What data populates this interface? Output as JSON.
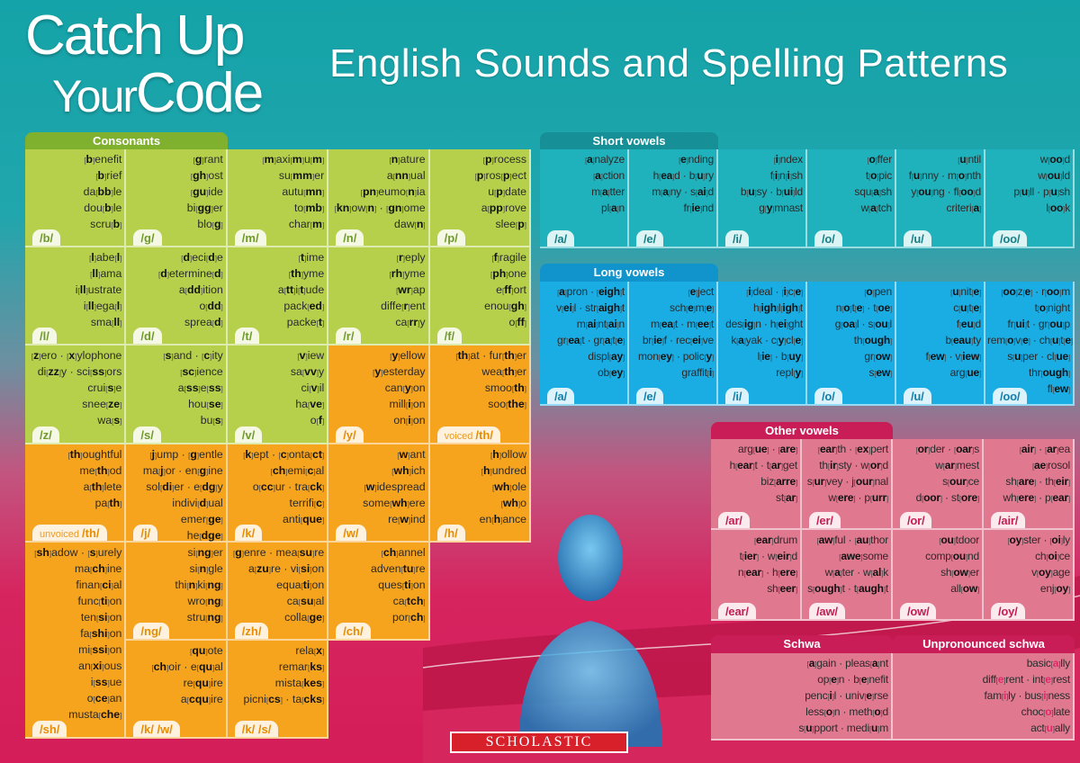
{
  "title": {
    "line1": "Catch Up",
    "line2a": "Your",
    "line2b": "Code",
    "subtitle": "English Sounds and Spelling Patterns"
  },
  "colors": {
    "consonant_green": "#b6d04c",
    "consonant_orange": "#f6a31d",
    "short_vowels": "#20b2bc",
    "long_vowels": "#1aade4",
    "other_vowels": "#e07890",
    "header_pink": "#d41d59"
  },
  "consonants": {
    "title": "Consonants",
    "cells": [
      {
        "label": "/b/",
        "words": [
          "[b]enefit",
          "[b]rief",
          "da[bb]le",
          "dou[b]le",
          "scru[b]"
        ]
      },
      {
        "label": "/g/",
        "words": [
          "[g]rant",
          "[gh]ost",
          "[gu]ide",
          "bi[gg]er",
          "blo[g]"
        ]
      },
      {
        "label": "/m/",
        "words": [
          "[m]axi[m]u[m]",
          "su[mm]er",
          "autu[mn]",
          "to[mb]",
          "char[m]"
        ]
      },
      {
        "label": "/n/",
        "words": [
          "[n]ature",
          "a[nn]ual",
          "[pn]eumo[n]ia",
          "[kn]ow[n] · [gn]ome",
          "daw[n]"
        ]
      },
      {
        "label": "/p/",
        "words": [
          "[p]rocess",
          "[p]ros[p]ect",
          "u[p]date",
          "a[pp]rove",
          "slee[p]"
        ]
      },
      {
        "label": "/l/",
        "words": [
          "[l]abe[l]",
          "[ll]ama",
          "i[ll]ustrate",
          "i[ll]ega[l]",
          "sma[ll]"
        ]
      },
      {
        "label": "/d/",
        "words": [
          "[d]eci[d]e",
          "[d]etermine[d]",
          "a[dd]ition",
          "o[dd]",
          "sprea[d]"
        ]
      },
      {
        "label": "/t/",
        "words": [
          "[t]ime",
          "[th]yme",
          "a[tt]i[t]ude",
          "pack[ed]",
          "packe[t]"
        ]
      },
      {
        "label": "/r/",
        "words": [
          "[r]eply",
          "[rh]yme",
          "[wr]ap",
          "diffe[r]ent",
          "ca[rr]y"
        ]
      },
      {
        "label": "/f/",
        "words": [
          "[f]ragile",
          "[ph]one",
          "e[ff]ort",
          "enou[gh]",
          "o[ff]"
        ]
      },
      {
        "label": "/z/",
        "words": [
          "[z]ero · [x]ylophone",
          "di[zz]y · sci[ss]ors",
          "crui[s]e",
          "snee[ze]",
          "wa[s]"
        ]
      },
      {
        "label": "/s/",
        "words": [
          "[s]and · [c]ity",
          "[sc]ience",
          "a[ss]e[ss]",
          "hou[se]",
          "bu[s]"
        ]
      },
      {
        "label": "/v/",
        "words": [
          "[v]iew",
          "sa[vv]y",
          "ci[v]il",
          "ha[ve]",
          "o[f]"
        ]
      },
      {
        "label": "/y/",
        "words": [
          "[y]ellow",
          "[y]esterday",
          "can[y]on",
          "mill[i]on",
          "on[i]on"
        ]
      },
      {
        "label": "/th/",
        "label_prefix": "voiced",
        "words": [
          "[th]at · fur[th]er",
          "wea[th]er",
          "smoo[th]",
          "soo[the]"
        ]
      },
      {
        "label": "/th/",
        "label_prefix": "unvoiced",
        "words": [
          "[th]oughtful",
          "me[th]od",
          "a[th]lete",
          "pa[th]"
        ]
      },
      {
        "label": "/j/",
        "words": [
          "[j]ump · [g]entle",
          "ma[j]or · en[g]ine",
          "sol[di]er · e[dg]y",
          "indivi[d]ual",
          "emer[ge]",
          "he[dge]"
        ]
      },
      {
        "label": "/k/",
        "words": [
          "[k]ept · [c]onta[ct]",
          "[ch]emi[c]al",
          "o[cc]ur · tra[ck]",
          "terrifi[c]",
          "anti[que]"
        ]
      },
      {
        "label": "/w/",
        "words": [
          "[w]ant",
          "[wh]ich",
          "[w]idespread",
          "some[wh]ere",
          "re[w]ind"
        ]
      },
      {
        "label": "/h/",
        "words": [
          "[h]ollow",
          "[h]undred",
          "[wh]ole",
          "[wh]o",
          "en[h]ance"
        ]
      },
      {
        "label": "/sh/",
        "words": [
          "[sh]adow · [s]urely",
          "ma[ch]ine",
          "finan[ci]al",
          "func[ti]on",
          "ten[si]on",
          "fa[shi]on",
          "mi[ssi]on",
          "an[xi]ous",
          "i[ss]ue",
          "o[ce]an",
          "musta[che]"
        ]
      },
      {
        "label": "/ng/",
        "words": [
          "si[ng]er",
          "si[n]gle",
          "thi[n]ki[ng]",
          "wro[ng]",
          "stru[ng]"
        ]
      },
      {
        "label": "/zh/",
        "words": [
          "[g]enre · mea[su]re",
          "a[zu]re · vi[si]on",
          "equa[ti]on",
          "ca[su]al",
          "colla[ge]"
        ]
      },
      {
        "label": "/ch/",
        "words": [
          "[ch]annel",
          "adven[tu]re",
          "ques[ti]on",
          "ca[tch]",
          "por[ch]"
        ]
      },
      {
        "label": "/k/ /w/",
        "words": [
          "[qu]ote",
          "[ch]oir · e[qu]al",
          "re[qu]ire",
          "a[cqu]ire"
        ]
      },
      {
        "label": "/k/ /s/",
        "words": [
          "rela[x]",
          "remar[ks]",
          "mista[kes]",
          "picni[cs] · ta[cks]"
        ]
      }
    ]
  },
  "short_vowels": {
    "title": "Short vowels",
    "cells": [
      {
        "label": "/a/",
        "words": [
          "[a]nalyze",
          "[a]ction",
          "m[a]tter",
          "pl[a]n"
        ]
      },
      {
        "label": "/e/",
        "words": [
          "[e]nding",
          "h[ea]d · b[u]ry",
          "m[a]ny · s[ai]d",
          "fr[ie]nd"
        ]
      },
      {
        "label": "/i/",
        "words": [
          "[i]ndex",
          "f[i]n[i]sh",
          "b[u]sy · b[ui]ld",
          "g[y]mnast"
        ]
      },
      {
        "label": "/o/",
        "words": [
          "[o]ffer",
          "t[o]pic",
          "squ[a]sh",
          "w[a]tch"
        ]
      },
      {
        "label": "/u/",
        "words": [
          "[u]ntil",
          "f[u]nny · m[o]nth",
          "y[ou]ng · fl[oo]d",
          "criteri[a]"
        ]
      },
      {
        "label": "/oo/",
        "words": [
          "w[oo]d",
          "w[ou]ld",
          "p[u]ll · p[u]sh",
          "l[oo]k"
        ]
      }
    ]
  },
  "long_vowels": {
    "title": "Long vowels",
    "cells": [
      {
        "label": "/a/",
        "words": [
          "[a]pron · [eigh]t",
          "v[ei]l · str[aigh]t",
          "m[ai]nt[ai]n",
          "gr[ea]t · gr[a]t[e]",
          "displ[ay]",
          "ob[ey]"
        ]
      },
      {
        "label": "/e/",
        "words": [
          "[e]ject",
          "sch[e]m[e]",
          "m[ea]t · m[ee]t",
          "br[ie]f · rec[ei]ve",
          "mon[ey] · polic[y]",
          "graffit[i]"
        ]
      },
      {
        "label": "/i/",
        "words": [
          "[i]deal · [i]c[e]",
          "h[igh]l[igh]t",
          "des[ig]n · h[ei]ght",
          "k[a]yak · c[y]cl[e]",
          "l[ie] · b[uy]",
          "repl[y]"
        ]
      },
      {
        "label": "/o/",
        "words": [
          "[o]pen",
          "n[o]t[e] · t[oe]",
          "g[oa]l · s[ou]l",
          "th[ough]",
          "gr[ow]",
          "s[ew]"
        ]
      },
      {
        "label": "/u/",
        "words": [
          "[u]nit[e]",
          "c[u]t[e]",
          "f[eu]d",
          "b[eau]ty",
          "f[ew] · v[iew]",
          "arg[ue]"
        ]
      },
      {
        "label": "/oo/",
        "words": [
          "[oo]z[e] · r[oo]m",
          "t[o]night",
          "fr[ui]t · gr[ou]p",
          "rem[o]v[e] · ch[u]t[e]",
          "s[u]per · cl[ue]",
          "thr[ough]",
          "fl[ew]"
        ]
      }
    ]
  },
  "other_vowels": {
    "title": "Other vowels",
    "cells": [
      {
        "label": "/ar/",
        "words": [
          "arg[ue] · [are]",
          "h[ear]t · t[ar]get",
          "biz[arre]",
          "st[ar]"
        ]
      },
      {
        "label": "/er/",
        "words": [
          "[ear]th · [ex]pert",
          "th[ir]sty · w[or]d",
          "s[ur]vey · j[our]nal",
          "w[ere] · p[urr]"
        ]
      },
      {
        "label": "/or/",
        "words": [
          "[or]der · [oar]s",
          "w[ar]mest",
          "s[our]ce",
          "d[oor] · st[ore]"
        ]
      },
      {
        "label": "/air/",
        "words": [
          "[air] · [ar]ea",
          "[ae]rosol",
          "sh[are] · th[eir]",
          "wh[ere] · p[ear]"
        ]
      },
      {
        "label": "/ear/",
        "words": [
          "[ear]drum",
          "t[ier] · w[eir]d",
          "n[ear] · h[ere]",
          "sh[eer]"
        ]
      },
      {
        "label": "/aw/",
        "words": [
          "[aw]ful · [au]thor",
          "[awe]some",
          "w[a]ter · w[al]k",
          "s[ough]t · t[augh]t"
        ]
      },
      {
        "label": "/ow/",
        "words": [
          "[ou]tdoor",
          "comp[ou]nd",
          "sh[ow]er",
          "all[ow]"
        ]
      },
      {
        "label": "/oy/",
        "words": [
          "[oy]ster · [oi]ly",
          "ch[oi]ce",
          "v[oy]age",
          "enj[oy]"
        ]
      }
    ]
  },
  "schwa": {
    "title": "Schwa",
    "words": [
      "[a]gain · pleas[a]nt",
      "op[e]n · b[e]nefit",
      "penc[i]l · univ[e]rse",
      "less[o]n · meth[o]d",
      "s[u]pport · medi[u]m"
    ]
  },
  "unpronounced_schwa": {
    "title": "Unpronounced schwa",
    "words": [
      "basic[a]lly",
      "diff[e]rent · int[e]rest",
      "fam[i]ly · bus[i]ness",
      "choc[o]late",
      "act[u]ally"
    ]
  },
  "logo": "SCHOLASTIC"
}
